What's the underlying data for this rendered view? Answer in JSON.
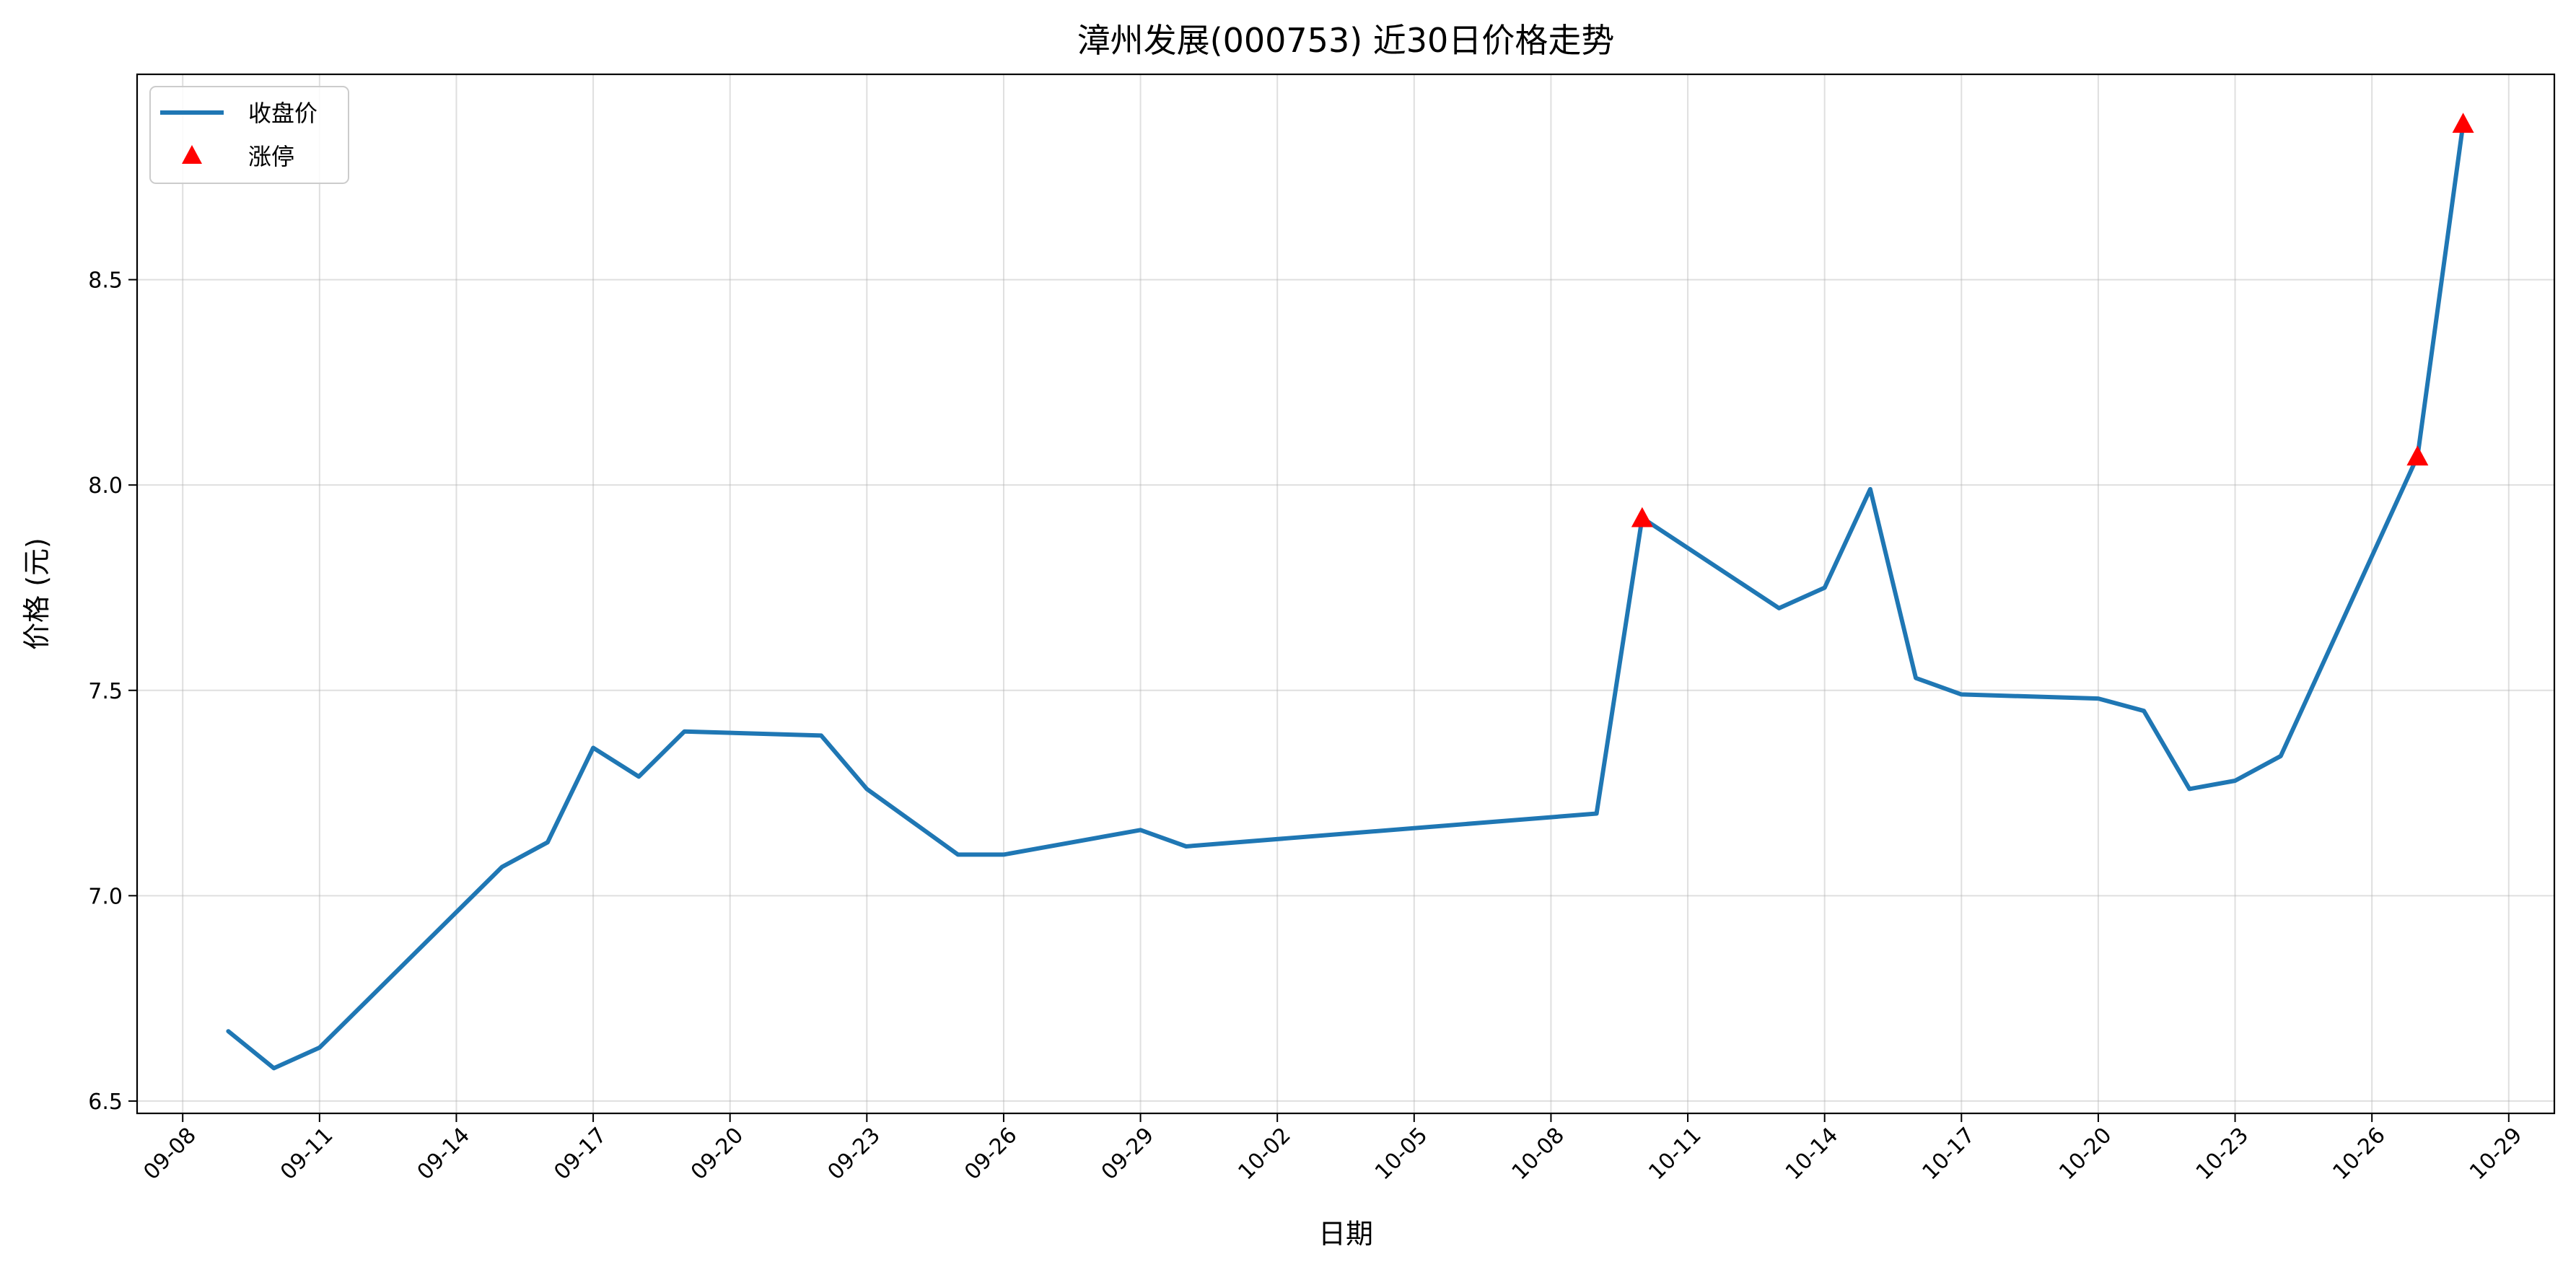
{
  "chart_data": {
    "type": "line",
    "title": "漳州发展(000753) 近30日价格走势",
    "xlabel": "日期",
    "ylabel": "价格 (元)",
    "xlim": [
      "2025-09-07",
      "2025-10-30"
    ],
    "ylim": [
      6.47,
      9.0
    ],
    "x_ticks": [
      "09-08",
      "09-11",
      "09-14",
      "09-17",
      "09-20",
      "09-23",
      "09-26",
      "09-29",
      "10-02",
      "10-05",
      "10-08",
      "10-11",
      "10-14",
      "10-17",
      "10-20",
      "10-23",
      "10-26",
      "10-29"
    ],
    "y_ticks": [
      6.5,
      7.0,
      7.5,
      8.0,
      8.5
    ],
    "grid": true,
    "legend_position": "top-left",
    "colors": {
      "line": "#1f77b4",
      "limit_up": "#ff0000"
    },
    "series": [
      {
        "name": "收盘价",
        "kind": "line",
        "x": [
          "2025-09-09",
          "2025-09-10",
          "2025-09-11",
          "2025-09-15",
          "2025-09-16",
          "2025-09-17",
          "2025-09-18",
          "2025-09-19",
          "2025-09-22",
          "2025-09-23",
          "2025-09-25",
          "2025-09-26",
          "2025-09-29",
          "2025-09-30",
          "2025-10-09",
          "2025-10-10",
          "2025-10-13",
          "2025-10-14",
          "2025-10-15",
          "2025-10-16",
          "2025-10-17",
          "2025-10-20",
          "2025-10-21",
          "2025-10-22",
          "2025-10-23",
          "2025-10-24",
          "2025-10-27",
          "2025-10-28"
        ],
        "values": [
          6.67,
          6.58,
          6.63,
          7.07,
          7.13,
          7.36,
          7.29,
          7.4,
          7.39,
          7.26,
          7.1,
          7.1,
          7.16,
          7.12,
          7.2,
          7.92,
          7.7,
          7.75,
          7.99,
          7.53,
          7.49,
          7.48,
          7.45,
          7.26,
          7.28,
          7.34,
          8.07,
          8.88
        ]
      },
      {
        "name": "涨停",
        "kind": "scatter",
        "x": [
          "2025-10-10",
          "2025-10-27",
          "2025-10-28"
        ],
        "values": [
          7.92,
          8.07,
          8.88
        ]
      }
    ]
  }
}
